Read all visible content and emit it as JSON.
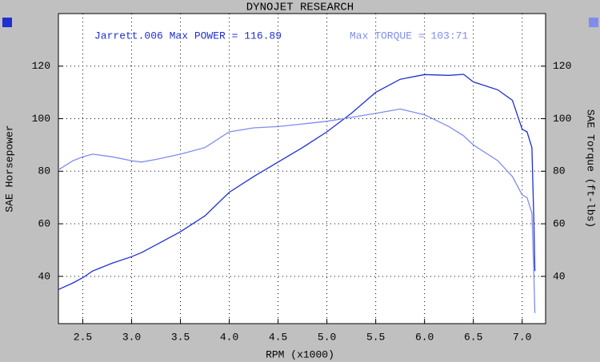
{
  "chart_data": {
    "type": "line",
    "title": "DYNOJET RESEARCH",
    "x_label": "RPM (x1000)",
    "y_label": "SAE Horsepower",
    "y2_label": "SAE Torque (ft-lbs)",
    "annotations": [
      {
        "text": "Jarrett.006 Max POWER = 116.89",
        "color": "#1f2fd2"
      },
      {
        "text": "Max TORQUE = 103:71",
        "color": "#7f8cee"
      }
    ],
    "x": [
      2.25,
      2.4,
      2.5,
      2.6,
      2.8,
      3.0,
      3.1,
      3.25,
      3.5,
      3.75,
      4.0,
      4.25,
      4.5,
      4.75,
      5.0,
      5.25,
      5.5,
      5.75,
      6.0,
      6.25,
      6.4,
      6.5,
      6.75,
      6.9,
      7.0,
      7.05,
      7.1,
      7.12,
      7.13
    ],
    "series": [
      {
        "name": "SAE Horsepower",
        "color": "#1f2fd2",
        "values": [
          35,
          37.5,
          39.5,
          42,
          45,
          47.5,
          49,
          52,
          57,
          63,
          72,
          78,
          83.5,
          89,
          95,
          102,
          110,
          115,
          116.8,
          116.5,
          116.9,
          114,
          111,
          107,
          96,
          95,
          89,
          60,
          42
        ]
      },
      {
        "name": "SAE Torque (ft-lbs)",
        "color": "#7f8cee",
        "axis": "y2",
        "values": [
          80.5,
          84,
          85.5,
          86.5,
          85.5,
          84,
          83.5,
          84.5,
          86.5,
          89,
          95,
          96.5,
          97,
          98,
          99,
          100.5,
          102,
          103.7,
          101.5,
          97,
          93.5,
          90,
          84,
          78,
          71,
          70,
          64,
          40,
          26
        ]
      }
    ],
    "xlim": [
      2.25,
      7.24
    ],
    "xticks": [
      2.5,
      {
        "value": 3,
        "label": "3.0"
      },
      3.5,
      {
        "value": 4,
        "label": "4.0"
      },
      4.5,
      {
        "value": 5,
        "label": "5.0"
      },
      5.5,
      {
        "value": 6,
        "label": "6.0"
      },
      6.5,
      {
        "value": 7,
        "label": "7.0"
      }
    ],
    "ylim": [
      22,
      140
    ],
    "yticks": [
      40,
      60,
      80,
      100,
      120
    ],
    "y2lim": [
      22,
      140
    ],
    "y2ticks": [
      40,
      60,
      80,
      100,
      120
    ],
    "grid": true
  }
}
